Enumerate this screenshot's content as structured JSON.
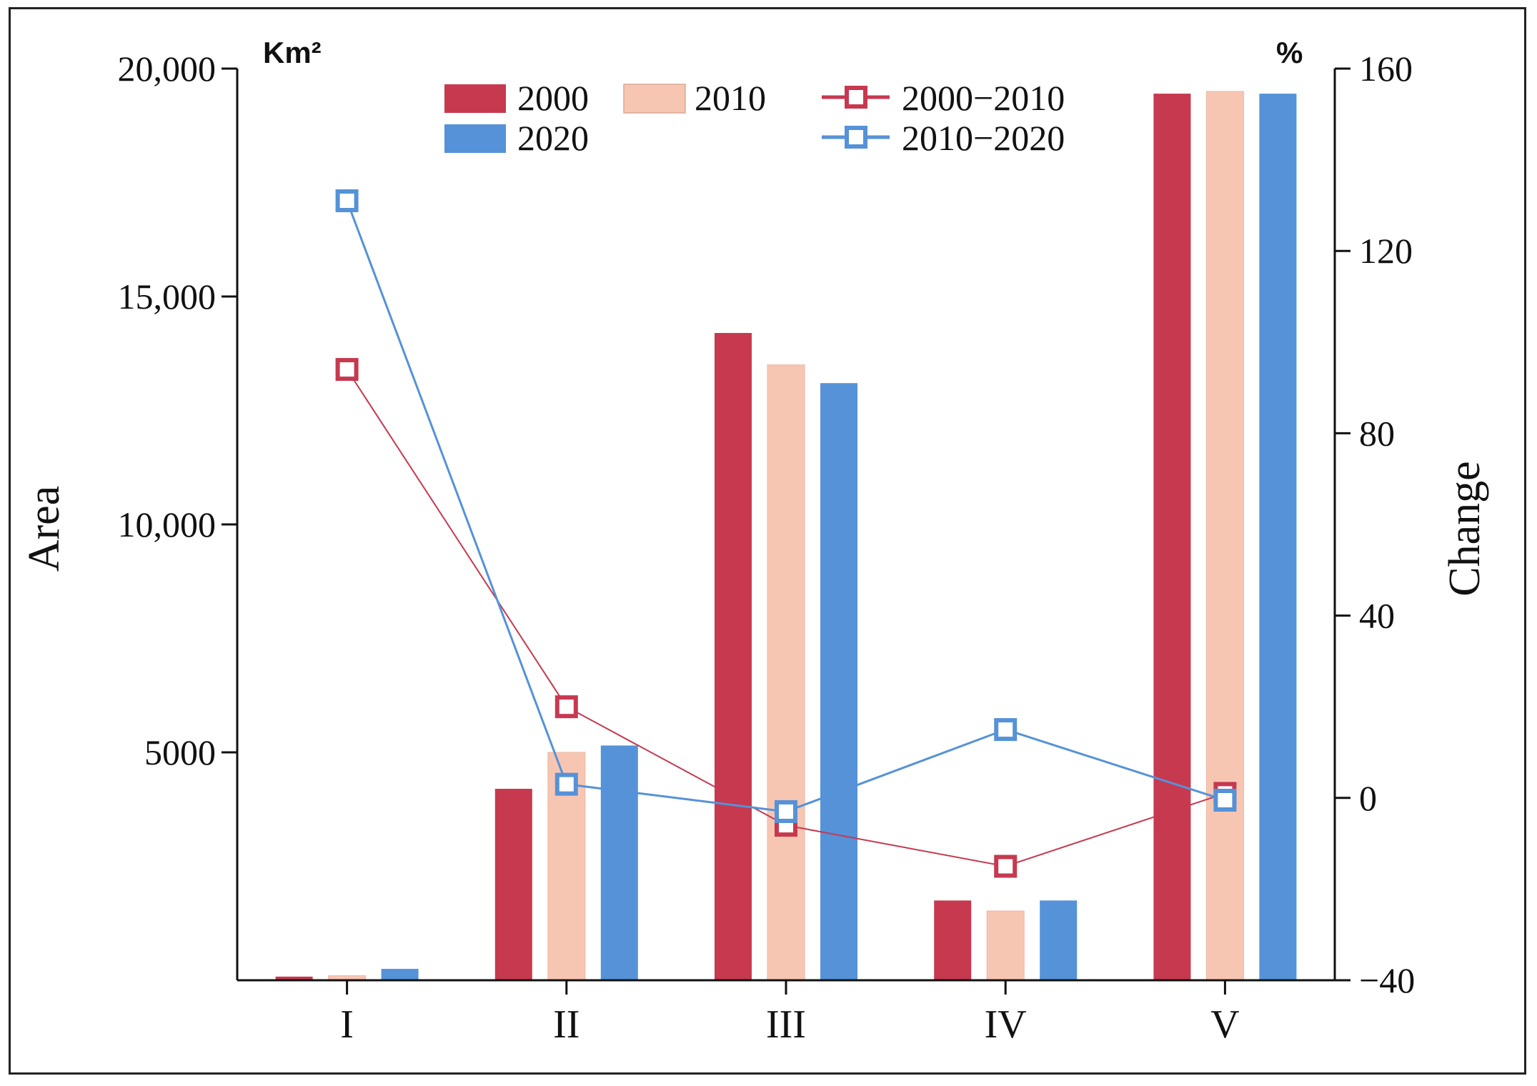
{
  "chart_data": {
    "type": "bar",
    "categories": [
      "I",
      "II",
      "III",
      "IV",
      "V"
    ],
    "bar_series": [
      {
        "name": "2000",
        "color": "#c6394f",
        "values": [
          80,
          4200,
          14200,
          1750,
          19450
        ]
      },
      {
        "name": "2010",
        "color": "#f7c6b2",
        "values": [
          100,
          5000,
          13500,
          1520,
          19500
        ]
      },
      {
        "name": "2020",
        "color": "#5592d8",
        "values": [
          250,
          5150,
          13100,
          1750,
          19450
        ]
      }
    ],
    "line_series": [
      {
        "name": "2000−2010",
        "color": "#c6394f",
        "values": [
          94,
          20,
          -6,
          -15,
          1
        ]
      },
      {
        "name": "2010−2020",
        "color": "#5592d8",
        "values": [
          131,
          3,
          -3,
          15,
          -0.5
        ]
      }
    ],
    "y_left": {
      "label": "Area",
      "unit": "Km²",
      "range": [
        0,
        20000
      ],
      "ticks": [
        5000,
        10000,
        15000,
        20000
      ],
      "tick_labels": [
        "5000",
        "10,000",
        "15,000",
        "20,000"
      ]
    },
    "y_right": {
      "label": "Change",
      "unit": "%",
      "range": [
        -40,
        160
      ],
      "ticks": [
        -40,
        0,
        40,
        80,
        120,
        160
      ],
      "tick_labels": [
        "−40",
        "0",
        "40",
        "80",
        "120",
        "160"
      ]
    },
    "legend_position": "top-center",
    "grid": false
  }
}
